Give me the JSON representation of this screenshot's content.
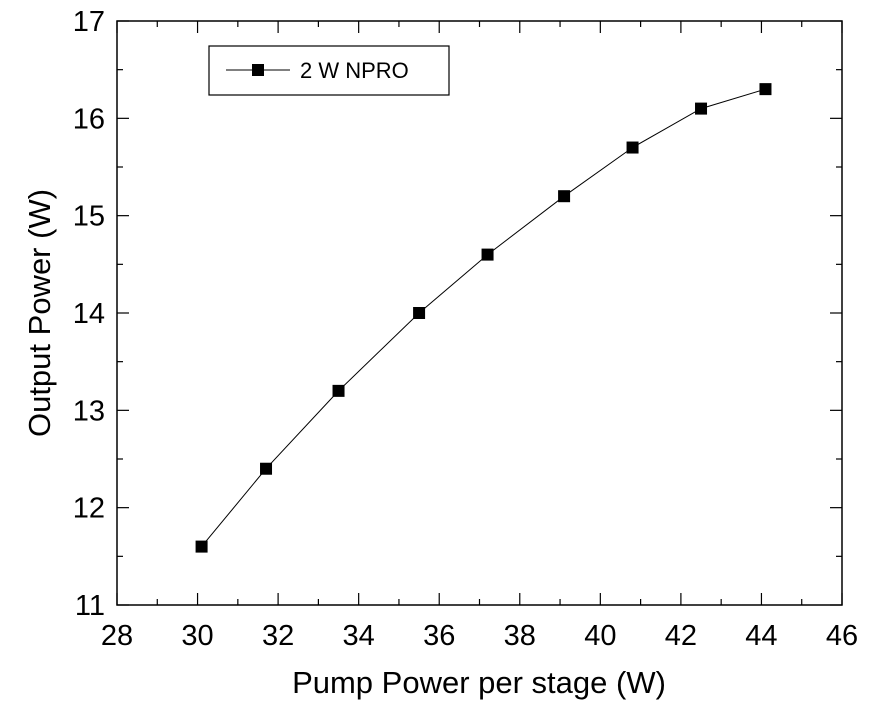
{
  "chart_data": {
    "type": "line",
    "xlabel": "Pump Power per stage (W)",
    "ylabel": "Output Power (W)",
    "xlim": [
      28,
      46
    ],
    "ylim": [
      11,
      17
    ],
    "xticks": [
      28,
      30,
      32,
      34,
      36,
      38,
      40,
      42,
      44,
      46
    ],
    "yticks": [
      11,
      12,
      13,
      14,
      15,
      16,
      17
    ],
    "x_minor_step": 1,
    "y_minor_step": 0.5,
    "grid": false,
    "legend_position": "top-left",
    "series": [
      {
        "name": "2 W NPRO",
        "marker": "square",
        "color": "#000000",
        "x": [
          30.1,
          31.7,
          33.5,
          35.5,
          37.2,
          39.1,
          40.8,
          42.5,
          44.1
        ],
        "y": [
          11.6,
          12.4,
          13.2,
          14.0,
          14.6,
          15.2,
          15.7,
          16.1,
          16.3
        ]
      }
    ]
  }
}
